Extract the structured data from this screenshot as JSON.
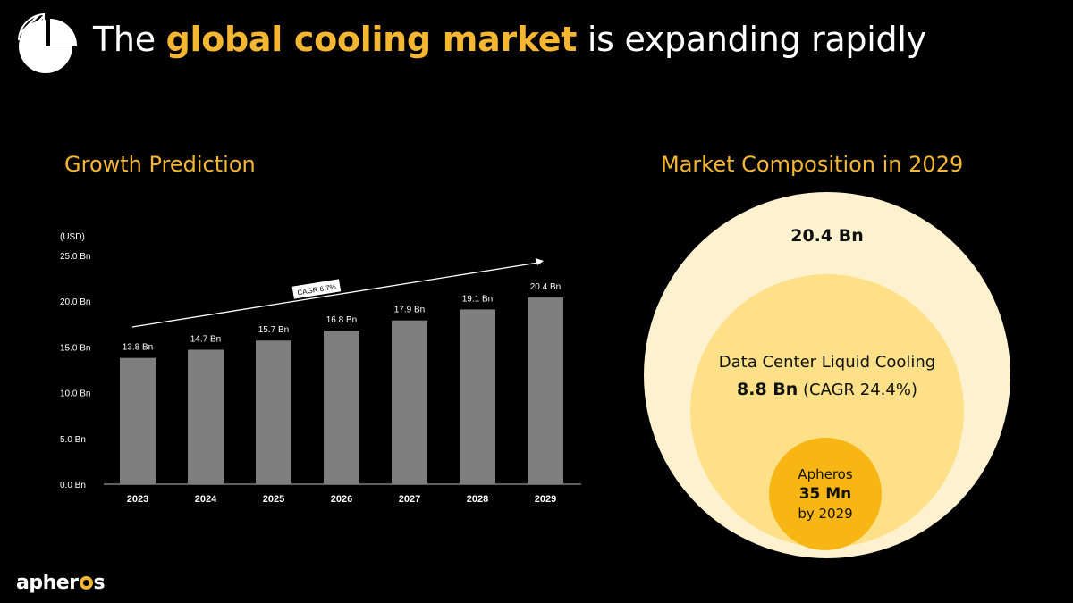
{
  "header": {
    "title_prefix": "The ",
    "title_highlight": "global cooling market",
    "title_suffix": " is expanding rapidly",
    "icon": "pie-chart-icon"
  },
  "growth": {
    "heading": "Growth Prediction"
  },
  "composition": {
    "heading": "Market Composition in 2029",
    "total": "20.4 Bn",
    "segment_label": "Data Center Liquid Cooling",
    "segment_value": "8.8 Bn",
    "segment_cagr": " (CAGR 24.4%)",
    "inner_name": "Apheros",
    "inner_value": "35 Mn",
    "inner_note": "by 2029"
  },
  "brand": {
    "left": "apher",
    "right": "s"
  },
  "colors": {
    "accent": "#f5b731",
    "bar": "#7f7f7f",
    "outer_circle": "#fdf1cf",
    "middle_circle": "#fde088",
    "inner_circle": "#f7b614"
  },
  "chart_data": {
    "type": "bar",
    "unit_label": "(USD)",
    "categories": [
      "2023",
      "2024",
      "2025",
      "2026",
      "2027",
      "2028",
      "2029"
    ],
    "values": [
      13.8,
      14.7,
      15.7,
      16.8,
      17.9,
      19.1,
      20.4
    ],
    "data_labels": [
      "13.8 Bn",
      "14.7 Bn",
      "15.7 Bn",
      "16.8 Bn",
      "17.9 Bn",
      "19.1 Bn",
      "20.4 Bn"
    ],
    "y_ticks": [
      0,
      5,
      10,
      15,
      20,
      25
    ],
    "y_tick_labels": [
      "0.0 Bn",
      "5.0 Bn",
      "10.0 Bn",
      "15.0 Bn",
      "20.0 Bn",
      "25.0 Bn"
    ],
    "ylim": [
      0,
      25
    ],
    "annotation": "CAGR 6.7%",
    "grid": false
  }
}
